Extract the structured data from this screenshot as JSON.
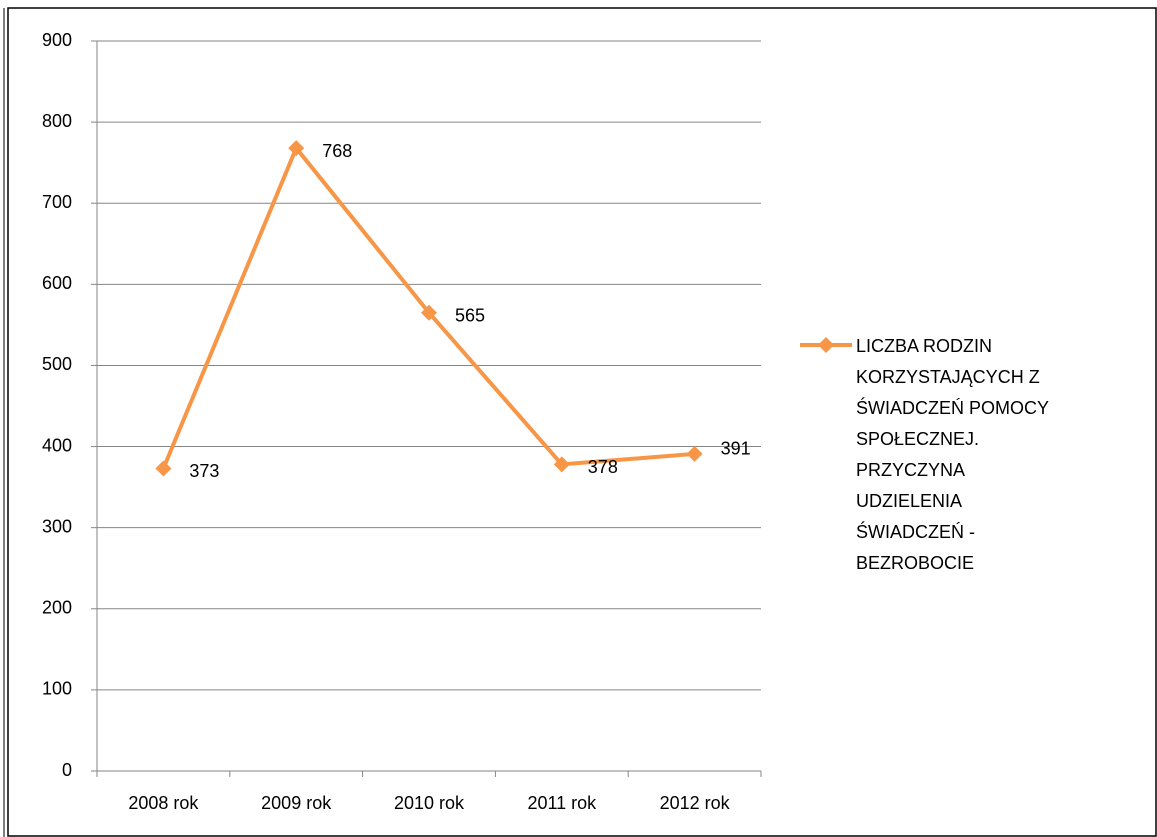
{
  "chart_data": {
    "type": "line",
    "categories": [
      "2008 rok",
      "2009 rok",
      "2010 rok",
      "2011 rok",
      "2012 rok"
    ],
    "series": [
      {
        "name": "LICZBA RODZIN KORZYSTAJĄCYCH Z ŚWIADCZEŃ POMOCY SPOŁECZNEJ. PRZYCZYNA UDZIELENIA ŚWIADCZEŃ - BEZROBOCIE",
        "color": "#f79646",
        "values": [
          373,
          768,
          565,
          378,
          391
        ]
      }
    ],
    "ylim": [
      0,
      900
    ],
    "yticks": [
      0,
      100,
      200,
      300,
      400,
      500,
      600,
      700,
      800,
      900
    ],
    "grid": true,
    "legend": "right"
  }
}
